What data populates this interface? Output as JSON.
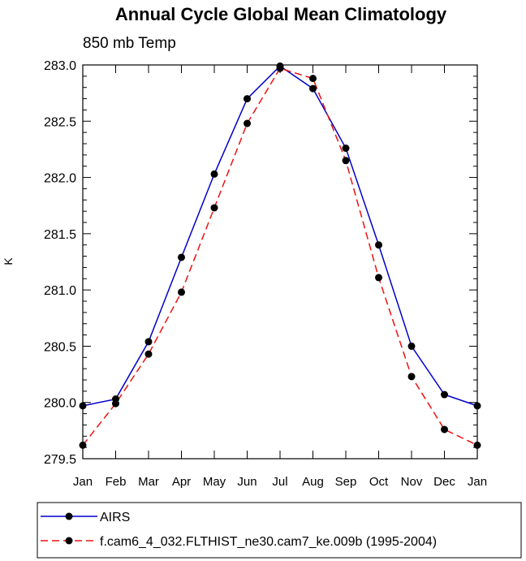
{
  "chart_data": {
    "type": "line",
    "title": "Annual Cycle Global Mean Climatology",
    "subtitle": "850 mb Temp",
    "ylabel": "K",
    "xlabel": "",
    "categories": [
      "Jan",
      "Feb",
      "Mar",
      "Apr",
      "May",
      "Jun",
      "Jul",
      "Aug",
      "Sep",
      "Oct",
      "Nov",
      "Dec",
      "Jan"
    ],
    "ylim": [
      279.5,
      283.0
    ],
    "yticks": [
      "283.0",
      "282.5",
      "282.0",
      "281.5",
      "281.0",
      "280.5",
      "280.0",
      "279.5"
    ],
    "series": [
      {
        "name": "AIRS",
        "color": "#0000cc",
        "style": "solid",
        "values": [
          279.97,
          280.03,
          280.54,
          281.29,
          282.03,
          282.7,
          282.99,
          282.79,
          282.26,
          281.4,
          280.5,
          280.07,
          279.97
        ]
      },
      {
        "name": "f.cam6_4_032.FLTHIST_ne30.cam7_ke.009b (1995-2004)",
        "color": "#ee1111",
        "style": "dashed",
        "values": [
          279.62,
          279.99,
          280.43,
          280.98,
          281.73,
          282.48,
          282.97,
          282.88,
          282.15,
          281.11,
          280.23,
          279.76,
          279.62
        ]
      }
    ],
    "grid": false,
    "legend_position": "bottom"
  }
}
